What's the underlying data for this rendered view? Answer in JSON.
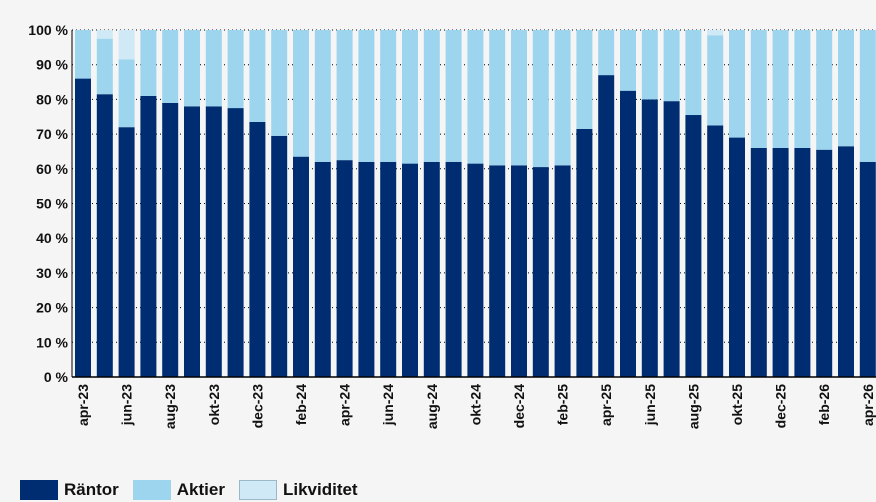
{
  "chart_data": {
    "type": "bar",
    "stacked": true,
    "title": "",
    "xlabel": "",
    "ylabel": "",
    "ylim": [
      0,
      100
    ],
    "y_ticks": [
      "0 %",
      "10 %",
      "20 %",
      "30 %",
      "40 %",
      "50 %",
      "60 %",
      "70 %",
      "80 %",
      "90 %",
      "100 %"
    ],
    "x_tick_labels": [
      "apr-23",
      "jun-23",
      "aug-23",
      "okt-23",
      "dec-23",
      "feb-24",
      "apr-24",
      "jun-24",
      "aug-24",
      "okt-24",
      "dec-24",
      "feb-25",
      "apr-25",
      "jun-25",
      "aug-25",
      "okt-25",
      "dec-25",
      "feb-26",
      "apr-26"
    ],
    "categories": [
      "apr-23",
      "maj-23",
      "jun-23",
      "jul-23",
      "aug-23",
      "sep-23",
      "okt-23",
      "nov-23",
      "dec-23",
      "jan-24",
      "feb-24",
      "mar-24",
      "apr-24",
      "maj-24",
      "jun-24",
      "jul-24",
      "aug-24",
      "sep-24",
      "okt-24",
      "nov-24",
      "dec-24",
      "jan-25",
      "feb-25",
      "mar-25",
      "apr-25",
      "maj-25",
      "jun-25",
      "jul-25",
      "aug-25",
      "sep-25",
      "okt-25",
      "nov-25",
      "dec-25",
      "jan-26",
      "feb-26",
      "mar-26",
      "apr-26"
    ],
    "series": [
      {
        "name": "Räntor",
        "color": "#002d72",
        "values": [
          86,
          81.5,
          72,
          81,
          79,
          78,
          78,
          77.5,
          73.5,
          69.5,
          63.5,
          62,
          62.5,
          62,
          62,
          61.5,
          62,
          62,
          61.5,
          61,
          61,
          60.5,
          61,
          71.5,
          87,
          82.5,
          80,
          79.5,
          75.5,
          72.5,
          69,
          66,
          66,
          66,
          65.5,
          66.5,
          62
        ]
      },
      {
        "name": "Aktier",
        "color": "#9dd5ef",
        "values": [
          14,
          16,
          19.5,
          19,
          21,
          22,
          22,
          22.5,
          26.5,
          30.5,
          36.5,
          38,
          37.5,
          38,
          38,
          38.5,
          38,
          38,
          38.5,
          39,
          39,
          39.5,
          39,
          28.5,
          13,
          17.5,
          20,
          20.5,
          24.5,
          26,
          31,
          34,
          34,
          34,
          34.5,
          33.5,
          38
        ]
      },
      {
        "name": "Likviditet",
        "color": "#cfe9f7",
        "values": [
          0,
          2.5,
          8.5,
          0,
          0,
          0,
          0,
          0,
          0,
          0,
          0,
          0,
          0,
          0,
          0,
          0,
          0,
          0,
          0,
          0,
          0,
          0,
          0,
          0,
          0,
          0,
          0,
          0,
          0,
          1.5,
          0,
          0,
          0,
          0,
          0,
          0,
          0
        ]
      }
    ],
    "legend_position": "bottom-left",
    "grid": true
  }
}
